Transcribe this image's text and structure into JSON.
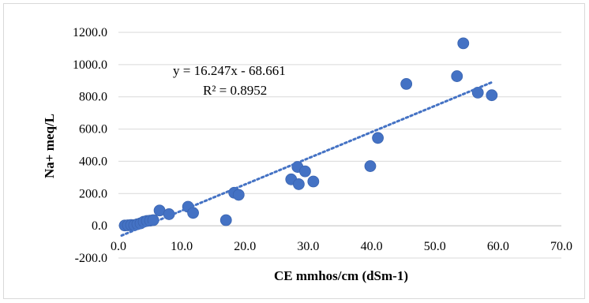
{
  "chart_data": {
    "type": "scatter",
    "xlabel": "CE mmhos/cm (dSm-1)",
    "ylabel": "Na+ meq/L",
    "xlim": [
      0,
      70
    ],
    "ylim": [
      -200,
      1200
    ],
    "x_ticks": [
      "0.0",
      "10.0",
      "20.0",
      "30.0",
      "40.0",
      "50.0",
      "60.0",
      "70.0"
    ],
    "y_ticks": [
      "-200.0",
      "0.0",
      "200.0",
      "400.0",
      "600.0",
      "800.0",
      "1000.0",
      "1200.0"
    ],
    "grid": "horizontal",
    "marker_color": "#4472c4",
    "trendline": {
      "slope": 16.247,
      "intercept": -68.661,
      "x_range": [
        0.5,
        59
      ],
      "style": "dotted",
      "color": "#4472c4",
      "equation": "y = 16.247x - 68.661",
      "r_squared": "R² = 0.8952"
    },
    "series": [
      {
        "points": [
          [
            1.0,
            2
          ],
          [
            1.5,
            3
          ],
          [
            2.0,
            5
          ],
          [
            2.5,
            4
          ],
          [
            3.0,
            10
          ],
          [
            3.5,
            15
          ],
          [
            4.0,
            25
          ],
          [
            4.5,
            30
          ],
          [
            5.0,
            32
          ],
          [
            5.5,
            35
          ],
          [
            6.5,
            95
          ],
          [
            8.0,
            72
          ],
          [
            11.0,
            118
          ],
          [
            11.8,
            80
          ],
          [
            17.0,
            35
          ],
          [
            18.3,
            205
          ],
          [
            19.0,
            192
          ],
          [
            27.3,
            288
          ],
          [
            28.3,
            365
          ],
          [
            28.5,
            258
          ],
          [
            29.5,
            338
          ],
          [
            30.8,
            275
          ],
          [
            39.8,
            370
          ],
          [
            41.0,
            545
          ],
          [
            45.5,
            880
          ],
          [
            53.5,
            928
          ],
          [
            54.5,
            1132
          ],
          [
            56.8,
            826
          ],
          [
            59.0,
            810
          ]
        ]
      }
    ]
  }
}
